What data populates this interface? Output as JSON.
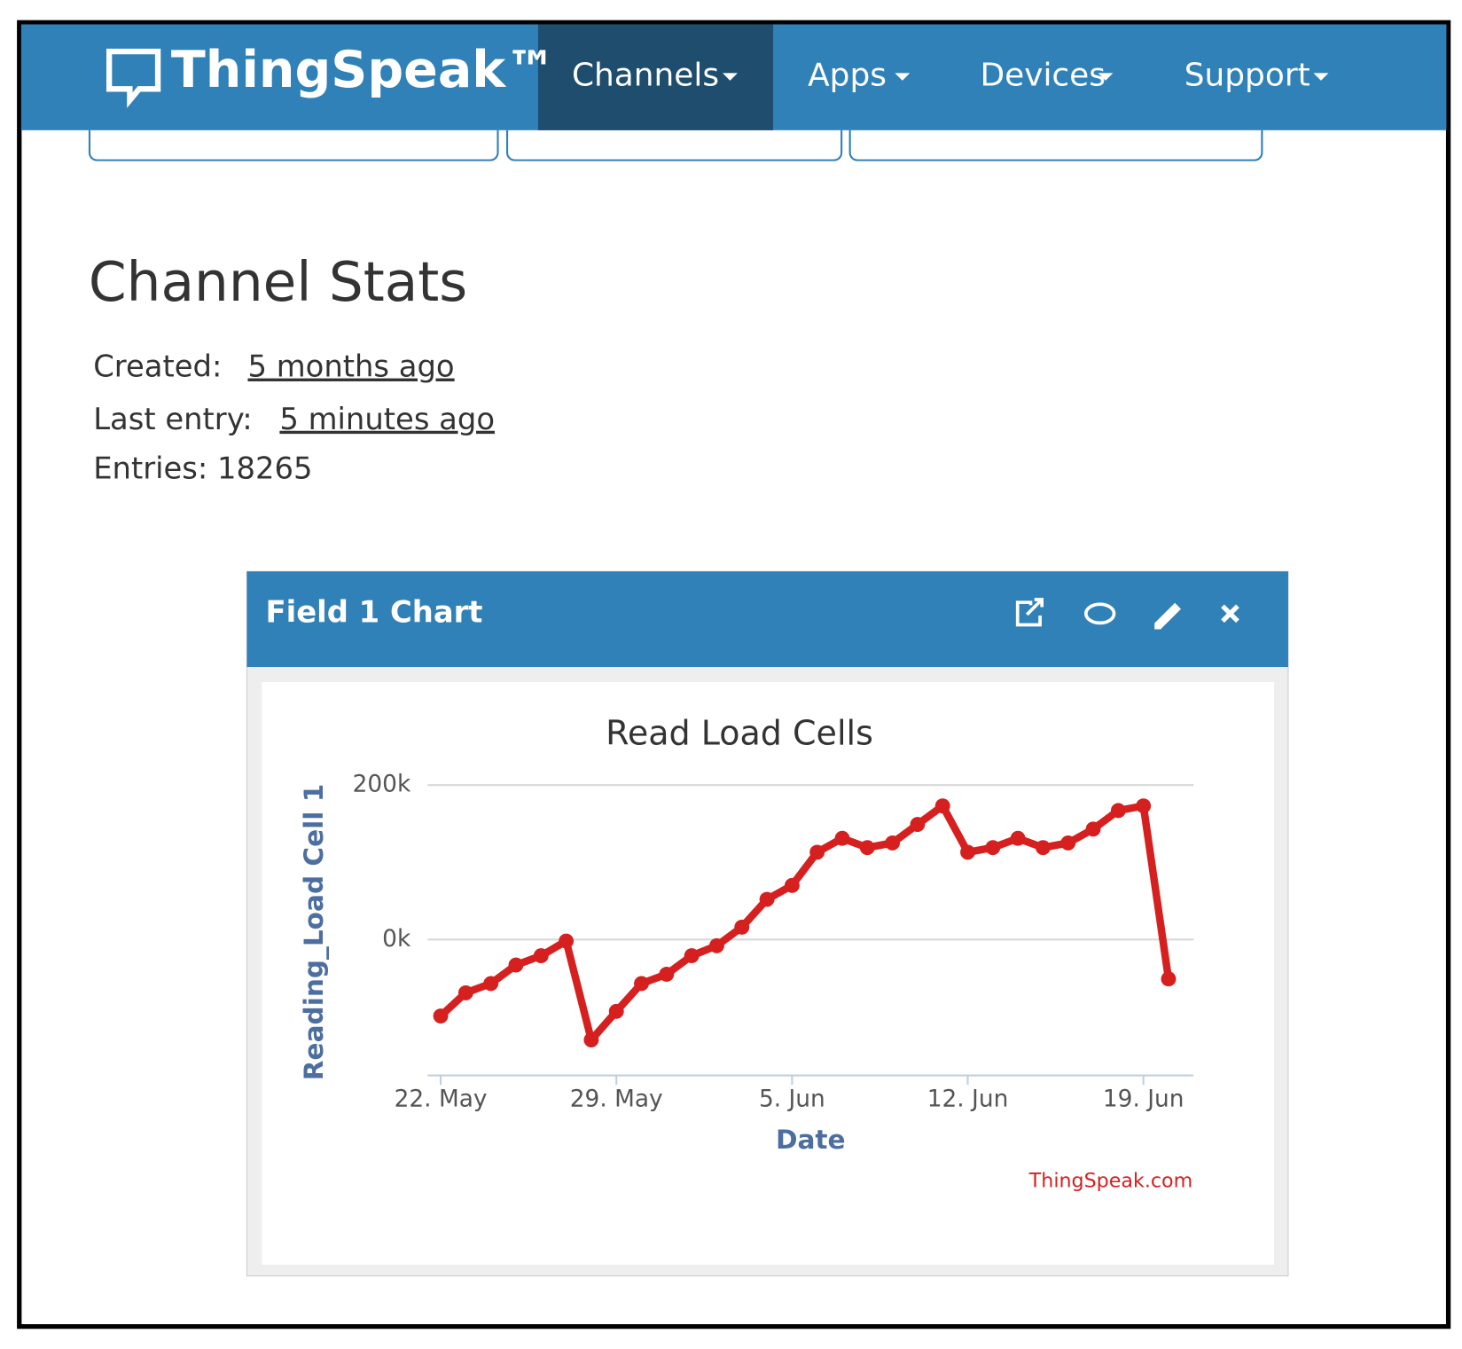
{
  "nav": {
    "brand": "ThingSpeak™",
    "items": [
      "Channels",
      "Apps",
      "Devices",
      "Support"
    ]
  },
  "stats": {
    "title": "Channel Stats",
    "created_label": "Created:",
    "created": "5 months ago",
    "last_entry_label": "Last entry:",
    "last_entry": "5 minutes ago",
    "entries": "Entries: 18265"
  },
  "panel": {
    "title": "Field 1 Chart"
  },
  "chart_data": {
    "type": "line",
    "title": "Read Load Cells",
    "x_label": "Date",
    "y_label": "Reading_Load Cell 1",
    "credit": "ThingSpeak.com",
    "x": [
      "22. May",
      "23. May",
      "24. May",
      "25. May",
      "26. May",
      "27. May",
      "28. May",
      "29. May",
      "30. May",
      "31. May",
      "1. Jun",
      "2. Jun",
      "3. Jun",
      "4. Jun",
      "5. Jun",
      "6. Jun",
      "7. Jun",
      "8. Jun",
      "9. Jun",
      "10. Jun",
      "11. Jun",
      "12. Jun",
      "13. Jun",
      "14. Jun",
      "15. Jun",
      "16. Jun",
      "17. Jun",
      "18. Jun",
      "19. Jun",
      "20. Jun"
    ],
    "values": [
      -99000,
      -69000,
      -57000,
      -33000,
      -21000,
      -2000,
      -130000,
      -93000,
      -57000,
      -45000,
      -21000,
      -8000,
      16000,
      52000,
      70000,
      113000,
      131000,
      119000,
      125000,
      149000,
      173000,
      113000,
      119000,
      131000,
      119000,
      125000,
      143000,
      167000,
      173000,
      -51000
    ],
    "color": "#d62020",
    "xticks": [
      "22. May",
      "29. May",
      "5. Jun",
      "12. Jun",
      "19. Jun"
    ],
    "ylim": [
      -176000,
      200000
    ],
    "yticks": [
      {
        "value": 200000,
        "label": "200k"
      },
      {
        "value": 0,
        "label": "0k"
      }
    ],
    "grid": true
  }
}
